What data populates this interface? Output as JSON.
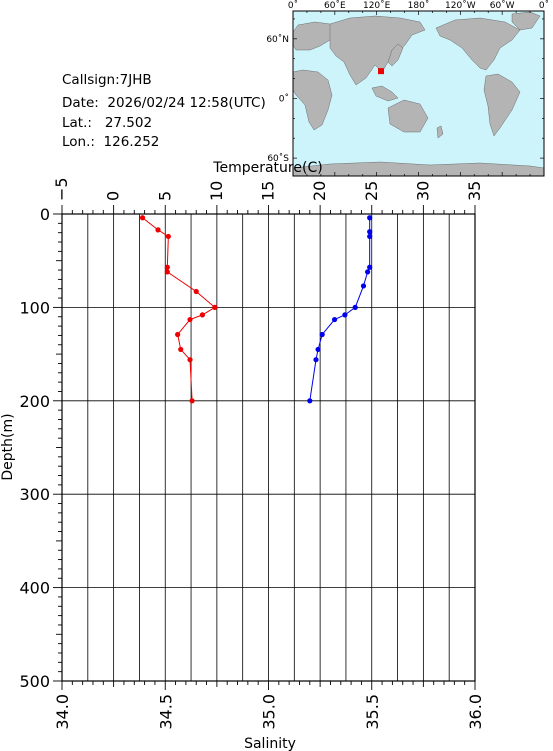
{
  "station": {
    "callsign_label": "Callsign:",
    "callsign": "7JHB",
    "date_label": "Date:",
    "date": "2026/02/24 12:58(UTC)",
    "lat_label": "Lat.:",
    "lat": "27.502",
    "lon_label": "Lon.:",
    "lon": "126.252"
  },
  "map": {
    "lon_ticks": [
      "0˚",
      "60˚E",
      "120˚E",
      "180˚",
      "120˚W",
      "60˚W",
      "0˚"
    ],
    "lat_ticks": [
      {
        "label": "60˚N",
        "lat": 60
      },
      {
        "label": "0˚",
        "lat": 0
      },
      {
        "label": "60˚S",
        "lat": -60
      }
    ],
    "lon_range": [
      0,
      360
    ],
    "lat_range": [
      -78,
      88
    ],
    "ocean_color": "#cdf3fb",
    "land_color": "#b4b4b4",
    "marker": {
      "lon": 126.252,
      "lat": 27.502,
      "color": "#ee0000"
    }
  },
  "chart_data": {
    "type": "line",
    "top_axis_label": "Temperature(C)",
    "bottom_axis_label": "Salinity",
    "ylabel": "Depth(m)",
    "temperature_ticks": [
      "−5",
      "0",
      "5",
      "10",
      "15",
      "20",
      "25",
      "30",
      "35"
    ],
    "salinity_ticks": [
      "34.0",
      "34.5",
      "35.0",
      "35.5",
      "36.0"
    ],
    "depth_ticks": [
      "0",
      "100",
      "200",
      "300",
      "400",
      "500"
    ],
    "temperature_range": [
      -5,
      35
    ],
    "salinity_range": [
      34.0,
      36.0
    ],
    "depth_range": [
      0,
      500
    ],
    "grid": true,
    "series": [
      {
        "axis": "temperature",
        "color": "#ee0000",
        "points": [
          {
            "depth": 4,
            "temperature": 2.8
          },
          {
            "depth": 17,
            "temperature": 4.3
          },
          {
            "depth": 24,
            "temperature": 5.3
          },
          {
            "depth": 57,
            "temperature": 5.2
          },
          {
            "depth": 62,
            "temperature": 5.2
          },
          {
            "depth": 83,
            "temperature": 8.0
          },
          {
            "depth": 100,
            "temperature": 9.8
          },
          {
            "depth": 108,
            "temperature": 8.6
          },
          {
            "depth": 113,
            "temperature": 7.4
          },
          {
            "depth": 129,
            "temperature": 6.2
          },
          {
            "depth": 145,
            "temperature": 6.5
          },
          {
            "depth": 156,
            "temperature": 7.4
          },
          {
            "depth": 200,
            "temperature": 7.6
          }
        ]
      },
      {
        "axis": "salinity",
        "color": "#0000ee",
        "points": [
          {
            "depth": 4,
            "salinity": 35.49
          },
          {
            "depth": 19,
            "salinity": 35.49
          },
          {
            "depth": 24,
            "salinity": 35.49
          },
          {
            "depth": 57,
            "salinity": 35.49
          },
          {
            "depth": 62,
            "salinity": 35.48
          },
          {
            "depth": 77,
            "salinity": 35.46
          },
          {
            "depth": 100,
            "salinity": 35.42
          },
          {
            "depth": 108,
            "salinity": 35.37
          },
          {
            "depth": 113,
            "salinity": 35.32
          },
          {
            "depth": 129,
            "salinity": 35.26
          },
          {
            "depth": 145,
            "salinity": 35.24
          },
          {
            "depth": 156,
            "salinity": 35.23
          },
          {
            "depth": 200,
            "salinity": 35.2
          }
        ]
      }
    ]
  }
}
